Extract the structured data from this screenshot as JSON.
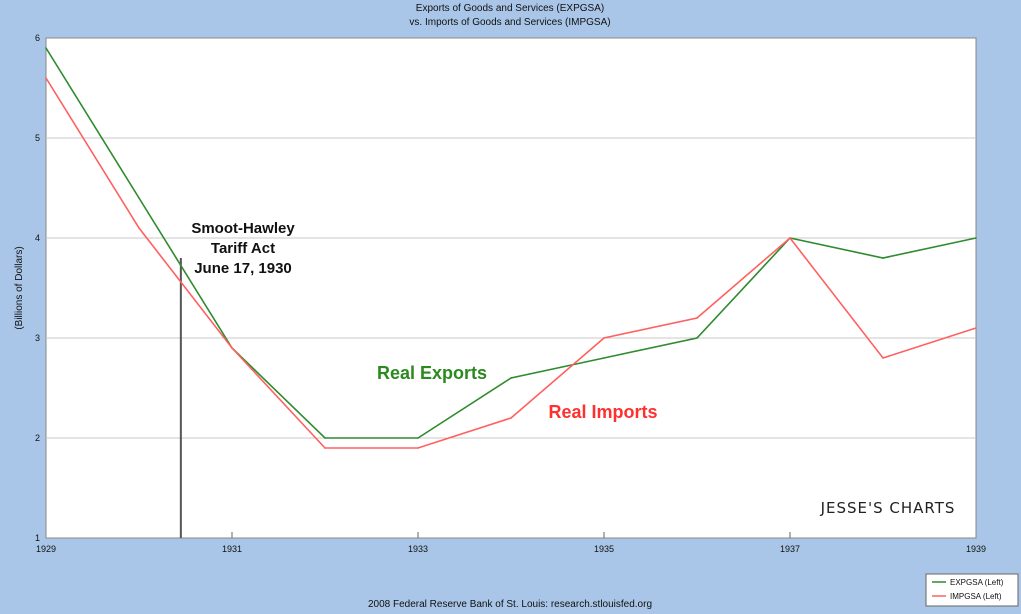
{
  "chart_data": {
    "type": "line",
    "title": "Exports of Goods and Services (EXPGSA)",
    "subtitle": "vs.  Imports of Goods and Services (IMPGSA)",
    "ylabel": "(Billions of Dollars)",
    "xlabel": "",
    "xlim": [
      1929,
      1939
    ],
    "ylim": [
      1,
      6
    ],
    "yticks": [
      "1",
      "2",
      "3",
      "4",
      "5",
      "6"
    ],
    "xticks": [
      "1929",
      "1931",
      "1933",
      "1935",
      "1937",
      "1939"
    ],
    "grid": true,
    "x": [
      1929,
      1930,
      1931,
      1932,
      1933,
      1934,
      1935,
      1936,
      1937,
      1938,
      1939
    ],
    "series": [
      {
        "name": "EXPGSA (Left)",
        "color": "#2e8b2e",
        "values": [
          5.9,
          4.4,
          2.9,
          2.0,
          2.0,
          2.6,
          2.8,
          3.0,
          4.0,
          3.8,
          4.0
        ]
      },
      {
        "name": "IMPGSA (Left)",
        "color": "#ff6060",
        "values": [
          5.6,
          4.1,
          2.9,
          1.9,
          1.9,
          2.2,
          3.0,
          3.2,
          4.0,
          2.8,
          3.1
        ]
      }
    ],
    "annotation": {
      "x": 1930.45,
      "y_top": 3.8,
      "lines": [
        "Smoot-Hawley",
        "Tariff Act",
        "June 17, 1930"
      ]
    },
    "series_labels": [
      {
        "text": "Real Exports",
        "color": "#2a8a1e"
      },
      {
        "text": "Real Imports",
        "color": "#ff3030"
      }
    ],
    "legend_position": "bottom-right"
  },
  "watermark": "JESSE'S CHARTS",
  "source": "2008 Federal Reserve Bank of St. Louis: research.stlouisfed.org"
}
